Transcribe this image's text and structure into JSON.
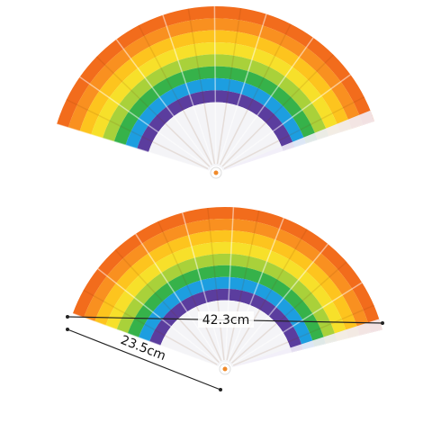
{
  "dimensions": {
    "width": "42.3cm",
    "depth": "23.5cm"
  }
}
